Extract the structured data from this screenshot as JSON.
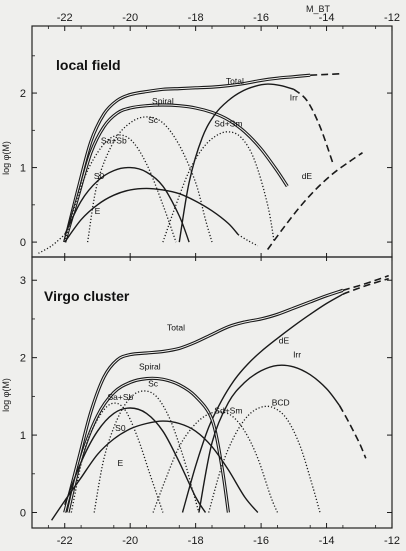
{
  "colors": {
    "background": "#efefed",
    "ink": "#1a1a1a"
  },
  "top_axis": {
    "label": "M_BT",
    "ticks": [
      "-22",
      "-20",
      "-18",
      "-16",
      "-14",
      "-12"
    ]
  },
  "bottom_axis": {
    "ticks": [
      "-22",
      "-20",
      "-18",
      "-16",
      "-14",
      "-12"
    ]
  },
  "chart_data": [
    {
      "type": "line",
      "title": "local field",
      "ylabel": "log φ(M)",
      "xlim": [
        -23.0,
        -12.0
      ],
      "ylim": [
        -0.2,
        2.9
      ],
      "yticks": [
        "0",
        "1",
        "2"
      ],
      "grid": false,
      "series": [
        {
          "name": "Total",
          "style": "solid-double",
          "label_at": [
            -16.8,
            2.12
          ],
          "x": [
            -22.0,
            -21.6,
            -21.2,
            -20.8,
            -20.4,
            -20.0,
            -19.5,
            -19.0,
            -18.5,
            -18.0,
            -17.5,
            -17.0,
            -16.5,
            -16.0,
            -15.5,
            -15.0,
            -14.5
          ],
          "y": [
            0.0,
            0.7,
            1.35,
            1.72,
            1.9,
            1.98,
            2.02,
            2.05,
            2.06,
            2.07,
            2.08,
            2.1,
            2.13,
            2.17,
            2.2,
            2.22,
            2.24
          ]
        },
        {
          "name": "Total (extrapolated)",
          "style": "dashed",
          "label_at": null,
          "x": [
            -14.5,
            -14.0,
            -13.5
          ],
          "y": [
            2.24,
            2.25,
            2.26
          ]
        },
        {
          "name": "Spiral",
          "style": "solid-double",
          "label_at": [
            -19.0,
            1.85
          ],
          "x": [
            -22.0,
            -21.6,
            -21.2,
            -20.8,
            -20.4,
            -20.0,
            -19.5,
            -19.0,
            -18.5,
            -18.0,
            -17.5,
            -17.0,
            -16.5,
            -16.0,
            -15.5,
            -15.2
          ],
          "y": [
            0.0,
            0.6,
            1.2,
            1.55,
            1.73,
            1.8,
            1.83,
            1.84,
            1.83,
            1.8,
            1.74,
            1.64,
            1.48,
            1.25,
            0.95,
            0.75
          ]
        },
        {
          "name": "Sc",
          "style": "dotted",
          "label_at": [
            -19.3,
            1.6
          ],
          "x": [
            -21.3,
            -21.0,
            -20.5,
            -20.0,
            -19.5,
            -19.0,
            -18.5,
            -18.0,
            -17.7,
            -17.5
          ],
          "y": [
            0.0,
            0.8,
            1.35,
            1.6,
            1.68,
            1.6,
            1.3,
            0.8,
            0.3,
            0.0
          ]
        },
        {
          "name": "Sd+Sm",
          "style": "dotted",
          "label_at": [
            -17.0,
            1.55
          ],
          "x": [
            -19.0,
            -18.6,
            -18.2,
            -17.8,
            -17.4,
            -17.0,
            -16.6,
            -16.2,
            -15.8,
            -15.6
          ],
          "y": [
            0.0,
            0.5,
            0.95,
            1.25,
            1.42,
            1.48,
            1.4,
            1.1,
            0.5,
            0.0
          ]
        },
        {
          "name": "Sa+Sb",
          "style": "dotted",
          "label_at": [
            -20.5,
            1.32
          ],
          "x": [
            -22.0,
            -21.5,
            -21.0,
            -20.5,
            -20.0,
            -19.5,
            -19.0,
            -18.6
          ],
          "y": [
            0.0,
            0.75,
            1.2,
            1.42,
            1.38,
            1.05,
            0.5,
            0.0
          ]
        },
        {
          "name": "S0",
          "style": "solid",
          "label_at": [
            -20.95,
            0.85
          ],
          "x": [
            -22.0,
            -21.5,
            -21.0,
            -20.5,
            -20.0,
            -19.5,
            -19.0,
            -18.5,
            -18.2
          ],
          "y": [
            0.1,
            0.55,
            0.82,
            0.96,
            1.0,
            0.94,
            0.75,
            0.35,
            0.0
          ]
        },
        {
          "name": "S0 (extrapolated)",
          "style": "dotted",
          "label_at": null,
          "x": [
            -22.8,
            -22.4,
            -22.0
          ],
          "y": [
            -0.15,
            -0.05,
            0.1
          ]
        },
        {
          "name": "E",
          "style": "solid",
          "label_at": [
            -21.0,
            0.38
          ],
          "x": [
            -22.0,
            -21.5,
            -21.0,
            -20.5,
            -20.0,
            -19.5,
            -19.0,
            -18.5,
            -18.0,
            -17.5,
            -17.0,
            -16.7
          ],
          "y": [
            0.0,
            0.3,
            0.5,
            0.63,
            0.7,
            0.72,
            0.7,
            0.65,
            0.55,
            0.42,
            0.25,
            0.1
          ]
        },
        {
          "name": "E (extrapolated)",
          "style": "dotted",
          "label_at": null,
          "x": [
            -16.7,
            -16.4,
            -16.1
          ],
          "y": [
            0.1,
            0.02,
            -0.05
          ]
        },
        {
          "name": "Irr",
          "style": "solid",
          "label_at": [
            -15.0,
            1.9
          ],
          "x": [
            -18.5,
            -18.2,
            -17.8,
            -17.4,
            -17.0,
            -16.6,
            -16.2,
            -15.8,
            -15.4,
            -15.0
          ],
          "y": [
            0.0,
            0.8,
            1.4,
            1.72,
            1.9,
            2.02,
            2.09,
            2.12,
            2.1,
            2.05
          ]
        },
        {
          "name": "Irr (extrapolated)",
          "style": "dashed",
          "label_at": null,
          "x": [
            -15.0,
            -14.6,
            -14.2,
            -13.8
          ],
          "y": [
            2.05,
            1.9,
            1.55,
            1.05
          ]
        },
        {
          "name": "dE",
          "style": "dashed",
          "label_at": [
            -14.6,
            0.85
          ],
          "x": [
            -15.8,
            -15.3,
            -14.8,
            -14.3,
            -13.8,
            -13.3,
            -12.9
          ],
          "y": [
            -0.1,
            0.2,
            0.48,
            0.72,
            0.92,
            1.08,
            1.2
          ]
        }
      ]
    },
    {
      "type": "line",
      "title": "Virgo cluster",
      "ylabel": "log φ(M)",
      "xlim": [
        -23.0,
        -12.0
      ],
      "ylim": [
        -0.2,
        3.3
      ],
      "yticks": [
        "0",
        "1",
        "2",
        "3"
      ],
      "grid": false,
      "series": [
        {
          "name": "Total",
          "style": "solid-double",
          "label_at": [
            -18.6,
            2.35
          ],
          "x": [
            -22.0,
            -21.6,
            -21.2,
            -20.8,
            -20.4,
            -20.0,
            -19.5,
            -19.0,
            -18.5,
            -18.0,
            -17.5,
            -17.0,
            -16.5,
            -16.0,
            -15.5,
            -15.0,
            -14.5,
            -14.0,
            -13.5
          ],
          "y": [
            0.0,
            0.65,
            1.3,
            1.75,
            1.97,
            2.04,
            2.06,
            2.08,
            2.12,
            2.2,
            2.3,
            2.4,
            2.46,
            2.5,
            2.56,
            2.64,
            2.72,
            2.8,
            2.87
          ]
        },
        {
          "name": "Total (extrapolated)",
          "style": "dashed",
          "label_at": null,
          "x": [
            -13.5,
            -13.0,
            -12.5,
            -12.1
          ],
          "y": [
            2.87,
            2.93,
            3.0,
            3.06
          ]
        },
        {
          "name": "dE",
          "style": "solid",
          "label_at": [
            -15.3,
            2.18
          ],
          "x": [
            -18.4,
            -18.0,
            -17.6,
            -17.2,
            -16.8,
            -16.4,
            -16.0,
            -15.5,
            -15.0,
            -14.5,
            -14.0,
            -13.5
          ],
          "y": [
            0.0,
            0.6,
            1.1,
            1.45,
            1.72,
            1.92,
            2.08,
            2.25,
            2.41,
            2.56,
            2.7,
            2.82
          ]
        },
        {
          "name": "dE (extrapolated)",
          "style": "dashed",
          "label_at": null,
          "x": [
            -13.5,
            -13.0,
            -12.5,
            -12.1
          ],
          "y": [
            2.82,
            2.9,
            2.97,
            3.02
          ]
        },
        {
          "name": "Spiral",
          "style": "solid-double",
          "label_at": [
            -19.4,
            1.85
          ],
          "x": [
            -21.9,
            -21.5,
            -21.0,
            -20.5,
            -20.0,
            -19.5,
            -19.0,
            -18.5,
            -18.0,
            -17.5,
            -17.2,
            -17.0
          ],
          "y": [
            0.0,
            0.7,
            1.25,
            1.55,
            1.68,
            1.73,
            1.72,
            1.65,
            1.5,
            1.2,
            0.6,
            0.0
          ]
        },
        {
          "name": "Sc",
          "style": "dotted",
          "label_at": [
            -19.3,
            1.63
          ],
          "x": [
            -21.1,
            -20.8,
            -20.4,
            -20.0,
            -19.6,
            -19.2,
            -18.8,
            -18.4,
            -18.1,
            -17.9
          ],
          "y": [
            0.0,
            0.7,
            1.2,
            1.48,
            1.57,
            1.5,
            1.22,
            0.75,
            0.3,
            0.0
          ]
        },
        {
          "name": "Sa+Sb",
          "style": "dotted",
          "label_at": [
            -20.3,
            1.45
          ],
          "x": [
            -21.8,
            -21.4,
            -21.0,
            -20.6,
            -20.2,
            -19.8,
            -19.4,
            -19.0
          ],
          "y": [
            0.0,
            0.8,
            1.2,
            1.4,
            1.35,
            1.0,
            0.5,
            0.0
          ]
        },
        {
          "name": "S0",
          "style": "solid",
          "label_at": [
            -20.3,
            1.05
          ],
          "x": [
            -22.0,
            -21.5,
            -21.0,
            -20.5,
            -20.0,
            -19.5,
            -19.0,
            -18.5,
            -18.0,
            -17.7
          ],
          "y": [
            0.1,
            0.65,
            1.05,
            1.28,
            1.35,
            1.28,
            1.05,
            0.65,
            0.2,
            0.0
          ]
        },
        {
          "name": "E",
          "style": "solid",
          "label_at": [
            -20.3,
            0.6
          ],
          "x": [
            -22.4,
            -22.0,
            -21.5,
            -21.0,
            -20.5,
            -20.0,
            -19.5,
            -19.0,
            -18.5,
            -18.0,
            -17.5,
            -17.0,
            -16.5,
            -16.1
          ],
          "y": [
            -0.1,
            0.15,
            0.45,
            0.75,
            0.95,
            1.08,
            1.15,
            1.18,
            1.15,
            1.05,
            0.85,
            0.55,
            0.2,
            0.0
          ]
        },
        {
          "name": "Sd+Sm",
          "style": "dotted",
          "label_at": [
            -17.0,
            1.28
          ],
          "x": [
            -19.3,
            -18.9,
            -18.5,
            -18.1,
            -17.7,
            -17.3,
            -16.9,
            -16.5,
            -16.1,
            -15.7,
            -15.5
          ],
          "y": [
            0.0,
            0.45,
            0.85,
            1.1,
            1.25,
            1.3,
            1.25,
            1.05,
            0.7,
            0.2,
            0.0
          ]
        },
        {
          "name": "Irr",
          "style": "solid",
          "label_at": [
            -14.9,
            2.0
          ],
          "x": [
            -17.9,
            -17.5,
            -17.0,
            -16.5,
            -16.0,
            -15.5,
            -15.0,
            -14.5,
            -14.0,
            -13.6
          ],
          "y": [
            0.0,
            0.9,
            1.42,
            1.68,
            1.83,
            1.9,
            1.88,
            1.78,
            1.6,
            1.38
          ]
        },
        {
          "name": "Irr (extrapolated)",
          "style": "dashed",
          "label_at": null,
          "x": [
            -13.6,
            -13.3,
            -13.0,
            -12.8
          ],
          "y": [
            1.38,
            1.15,
            0.9,
            0.7
          ]
        },
        {
          "name": "BCD",
          "style": "dotted",
          "label_at": [
            -15.4,
            1.38
          ],
          "x": [
            -17.6,
            -17.2,
            -16.8,
            -16.4,
            -16.0,
            -15.6,
            -15.2,
            -14.8,
            -14.4,
            -14.2
          ],
          "y": [
            0.0,
            0.6,
            1.0,
            1.25,
            1.36,
            1.35,
            1.2,
            0.85,
            0.3,
            0.0
          ]
        }
      ]
    }
  ]
}
